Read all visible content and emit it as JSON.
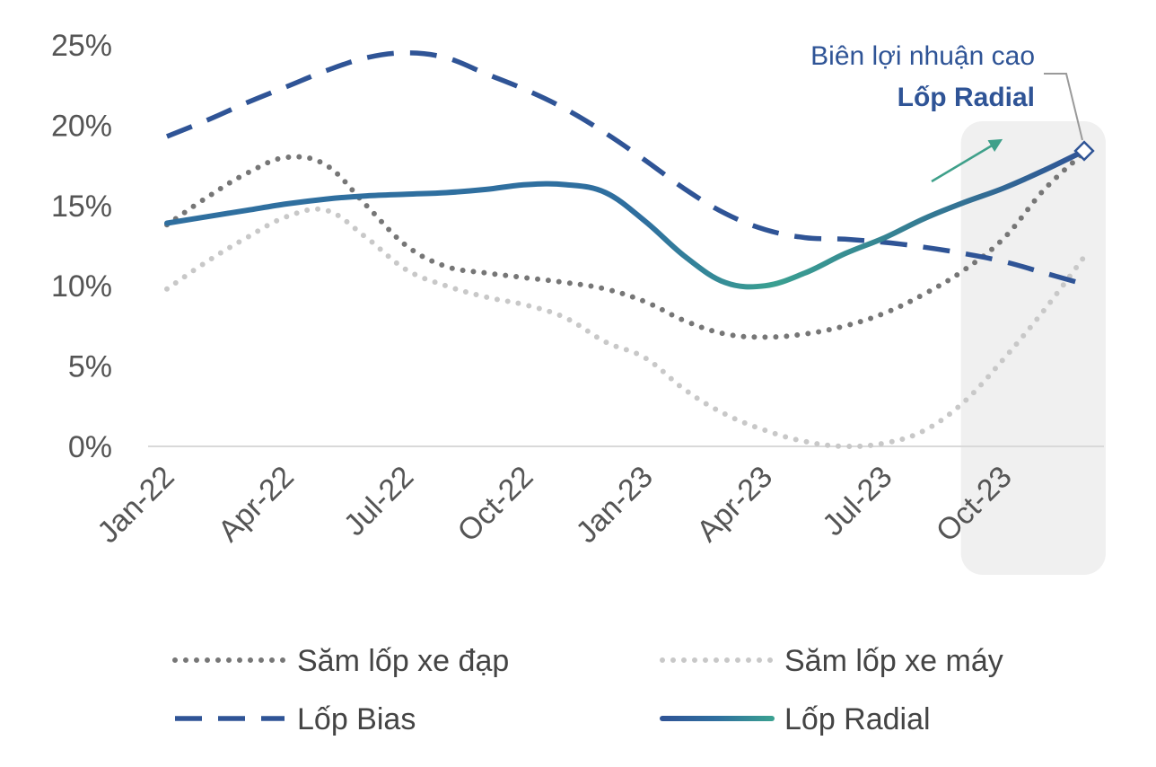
{
  "chart_data": {
    "type": "line",
    "x": [
      "Jan-22",
      "Feb-22",
      "Mar-22",
      "Apr-22",
      "May-22",
      "Jun-22",
      "Jul-22",
      "Aug-22",
      "Sep-22",
      "Oct-22",
      "Nov-22",
      "Dec-22",
      "Jan-23",
      "Feb-23",
      "Mar-23",
      "Apr-23",
      "May-23",
      "Jun-23",
      "Jul-23",
      "Aug-23",
      "Sep-23",
      "Oct-23",
      "Nov-23",
      "Dec-23"
    ],
    "x_ticks": [
      "Jan-22",
      "Apr-22",
      "Jul-22",
      "Oct-22",
      "Jan-23",
      "Apr-23",
      "Jul-23",
      "Oct-23"
    ],
    "ylim": [
      0,
      25
    ],
    "y_ticks": [
      "0%",
      "5%",
      "10%",
      "15%",
      "20%",
      "25%"
    ],
    "grid": false,
    "legend_placement": "bottom",
    "highlight_region": [
      "Sep-23",
      "Dec-23"
    ],
    "series": [
      {
        "name": "Săm lốp xe đạp",
        "style": "dotted",
        "color": "#767676",
        "values": [
          13.8,
          15.5,
          17.0,
          18.0,
          17.5,
          15.0,
          12.5,
          11.2,
          10.8,
          10.5,
          10.2,
          9.8,
          9.0,
          7.8,
          7.0,
          6.8,
          7.0,
          7.5,
          8.3,
          9.5,
          11.0,
          13.0,
          16.0,
          18.3
        ]
      },
      {
        "name": "Săm lốp xe máy",
        "style": "dotted",
        "color": "#C8C8C8",
        "values": [
          9.8,
          11.5,
          13.0,
          14.3,
          14.7,
          13.0,
          11.0,
          10.0,
          9.3,
          8.8,
          8.0,
          6.5,
          5.5,
          3.5,
          2.0,
          1.0,
          0.3,
          0.0,
          0.2,
          1.0,
          2.8,
          5.5,
          8.5,
          11.8
        ]
      },
      {
        "name": "Lốp Bias",
        "style": "dashed",
        "color": "#2F5496",
        "values": [
          19.3,
          20.3,
          21.4,
          22.4,
          23.4,
          24.2,
          24.5,
          24.2,
          23.2,
          22.2,
          21.0,
          19.5,
          17.8,
          16.0,
          14.5,
          13.5,
          13.0,
          12.9,
          12.7,
          12.4,
          12.0,
          11.5,
          10.8,
          10.1
        ]
      },
      {
        "name": "Lốp Radial",
        "style": "solid",
        "color": "#2E75B6",
        "values": [
          13.9,
          14.3,
          14.7,
          15.1,
          15.4,
          15.6,
          15.7,
          15.8,
          16.0,
          16.3,
          16.3,
          15.8,
          14.0,
          11.8,
          10.2,
          10.0,
          10.8,
          12.0,
          13.0,
          14.2,
          15.2,
          16.1,
          17.2,
          18.4
        ]
      }
    ],
    "annotation": {
      "line1": "Biên lợi nhuận cao",
      "line2": "Lốp Radial",
      "target_x": "Dec-23",
      "target_y": 18.4
    }
  },
  "colors": {
    "axis_line": "#D9D9D9",
    "highlight_fill": "#F0F0F0",
    "arrow": "#3FA08A",
    "radial_start": "#2F6F9F",
    "radial_mid": "#3AA091",
    "radial_end": "#2F5496",
    "annotation_text": "#2F5496"
  }
}
